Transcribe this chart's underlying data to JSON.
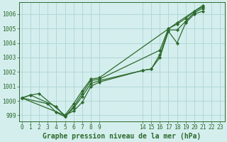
{
  "background_color": "#d4eeed",
  "grid_color": "#b0d8d8",
  "line_color": "#2d6a2d",
  "marker": "D",
  "markersize": 2.2,
  "linewidth": 0.9,
  "xlabel": "Graphe pression niveau de la mer (hPa)",
  "xlabel_fontsize": 7,
  "xtick_labels_shown": [
    "0",
    "1",
    "2",
    "3",
    "4",
    "5",
    "6",
    "7",
    "8",
    "9",
    "14",
    "15",
    "16",
    "17",
    "18",
    "19",
    "20",
    "21",
    "22",
    "23"
  ],
  "xtick_positions_shown": [
    0,
    1,
    2,
    3,
    4,
    5,
    6,
    7,
    8,
    9,
    14,
    15,
    16,
    17,
    18,
    19,
    20,
    21,
    22,
    23
  ],
  "xlim": [
    -0.3,
    23.5
  ],
  "ylim": [
    998.6,
    1006.8
  ],
  "ytick_vals": [
    999,
    1000,
    1001,
    1002,
    1003,
    1004,
    1005,
    1006
  ],
  "lines": [
    {
      "x": [
        0,
        1,
        2,
        5,
        6,
        7,
        8,
        9,
        14,
        15,
        16,
        17,
        18,
        19,
        20,
        21
      ],
      "y": [
        1000.2,
        1000.4,
        1000.5,
        999.0,
        999.3,
        999.9,
        1001.0,
        1001.3,
        1002.1,
        1002.2,
        1003.0,
        1004.8,
        1004.0,
        1005.4,
        1006.0,
        1006.2
      ]
    },
    {
      "x": [
        0,
        1,
        4,
        5,
        6,
        7,
        8,
        9,
        14,
        15,
        16,
        17,
        18,
        19,
        20,
        21
      ],
      "y": [
        1000.2,
        1000.4,
        999.6,
        998.9,
        999.5,
        1000.3,
        1001.2,
        1001.4,
        1002.1,
        1002.2,
        1003.2,
        1004.9,
        1004.9,
        1005.5,
        1006.1,
        1006.4
      ]
    },
    {
      "x": [
        0,
        3,
        4,
        5,
        6,
        7,
        8,
        9,
        16,
        17,
        18,
        19,
        20,
        21
      ],
      "y": [
        1000.2,
        999.8,
        999.2,
        998.9,
        999.6,
        1000.5,
        1001.4,
        1001.5,
        1003.5,
        1005.0,
        1005.3,
        1005.7,
        1006.2,
        1006.5
      ]
    },
    {
      "x": [
        0,
        5,
        6,
        7,
        8,
        9,
        18,
        20,
        21
      ],
      "y": [
        1000.2,
        999.0,
        999.8,
        1000.7,
        1001.5,
        1001.6,
        1005.4,
        1006.2,
        1006.6
      ]
    }
  ],
  "tick_color": "#2d6a2d",
  "tick_fontsize": 5.8,
  "fig_bg": "#d4eeed",
  "label_fontweight": "bold"
}
